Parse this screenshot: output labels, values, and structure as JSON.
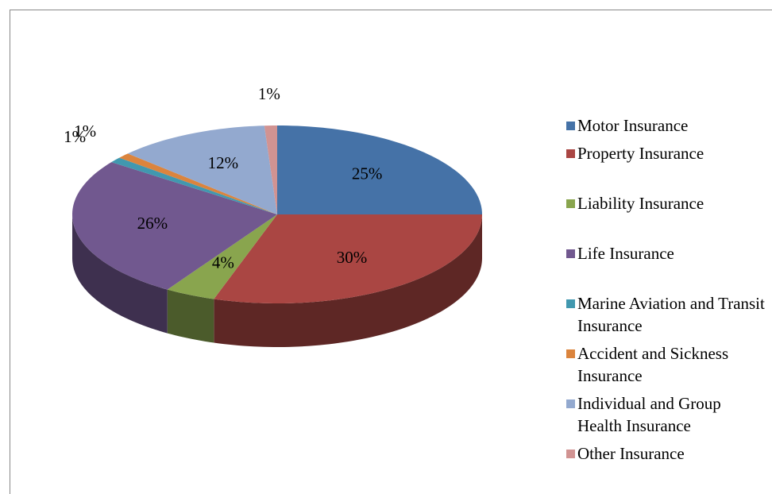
{
  "chart_data": {
    "type": "pie",
    "categories": [
      "Motor Insurance",
      "Property Insurance",
      "Liability Insurance",
      "Life Insurance",
      "Marine Aviation and Transit Insurance",
      "Accident and Sickness Insurance",
      "Individual and Group Health Insurance",
      "Other Insurance"
    ],
    "values": [
      25,
      30,
      4,
      26,
      1,
      1,
      12,
      1
    ],
    "value_labels": [
      "25%",
      "30%",
      "4%",
      "26%",
      "1%",
      "1%",
      "12%",
      "1%"
    ],
    "colors": [
      "#4572A7",
      "#AA4643",
      "#89A54E",
      "#71588F",
      "#4198AF",
      "#DB843D",
      "#93A9CF",
      "#D19392"
    ],
    "legend": "right"
  }
}
